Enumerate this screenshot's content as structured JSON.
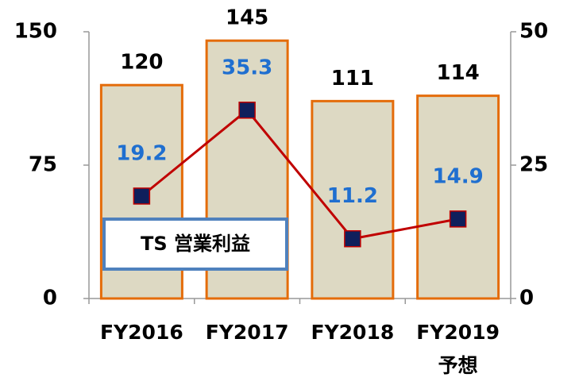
{
  "chart_data": {
    "type": "bar_line",
    "categories": [
      "FY2016",
      "FY2017",
      "FY2018",
      "FY2019 予想"
    ],
    "series": [
      {
        "type": "bar",
        "color": "#ddd9c3",
        "edge_color": "#e46c0a",
        "values": [
          120,
          145,
          111,
          114
        ]
      },
      {
        "type": "line",
        "axis": "y2",
        "color": "#c00000",
        "marker_color": "#0f1f5c",
        "label_color": "#1f6fd0",
        "values": [
          19.2,
          35.3,
          11.2,
          14.9
        ]
      }
    ],
    "ylim": [
      0,
      150
    ],
    "yticks": [
      0,
      75,
      150
    ],
    "y2lim": [
      0,
      50
    ],
    "y2ticks": [
      0,
      25,
      50
    ],
    "annotation": "TS 営業利益"
  }
}
